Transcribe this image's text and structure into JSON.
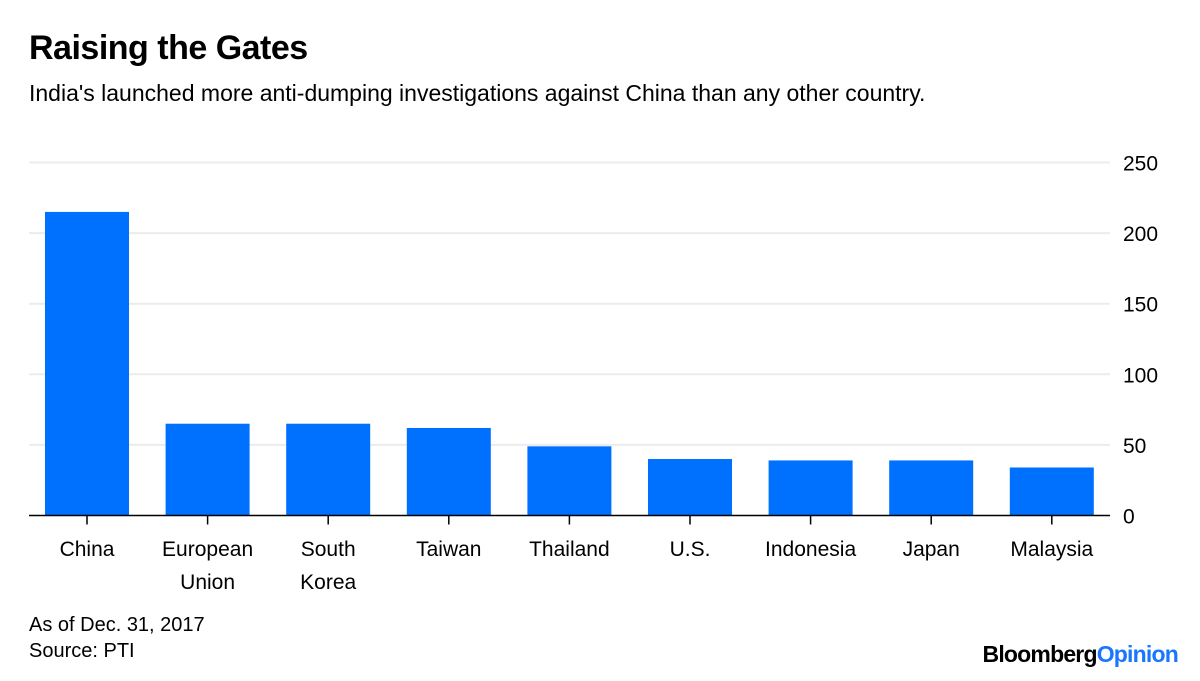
{
  "header": {
    "title": "Raising the Gates",
    "subtitle": "India's launched more anti-dumping investigations against China than any other country."
  },
  "footer": {
    "note": "As of Dec. 31, 2017",
    "source": "Source: PTI",
    "brand_part1": "Bloomberg",
    "brand_part2": "Opinion"
  },
  "colors": {
    "bar": "#0070ff",
    "gridline": "#ececec",
    "axis": "#000000",
    "brand_accent": "#1a76ff"
  },
  "chart_data": {
    "type": "bar",
    "title": "Raising the Gates",
    "subtitle": "India's launched more anti-dumping investigations against China than any other country.",
    "xlabel": "",
    "ylabel": "",
    "categories": [
      [
        "China"
      ],
      [
        "European",
        "Union"
      ],
      [
        "South",
        "Korea"
      ],
      [
        "Taiwan"
      ],
      [
        "Thailand"
      ],
      [
        "U.S."
      ],
      [
        "Indonesia"
      ],
      [
        "Japan"
      ],
      [
        "Malaysia"
      ]
    ],
    "values": [
      215,
      65,
      65,
      62,
      49,
      40,
      39,
      39,
      34
    ],
    "ylim": [
      0,
      250
    ],
    "yticks": [
      0,
      50,
      100,
      150,
      200,
      250
    ],
    "ytick_labels": [
      "0",
      "50",
      "100",
      "150",
      "200",
      "250"
    ],
    "y_axis_side": "right",
    "grid": true
  }
}
